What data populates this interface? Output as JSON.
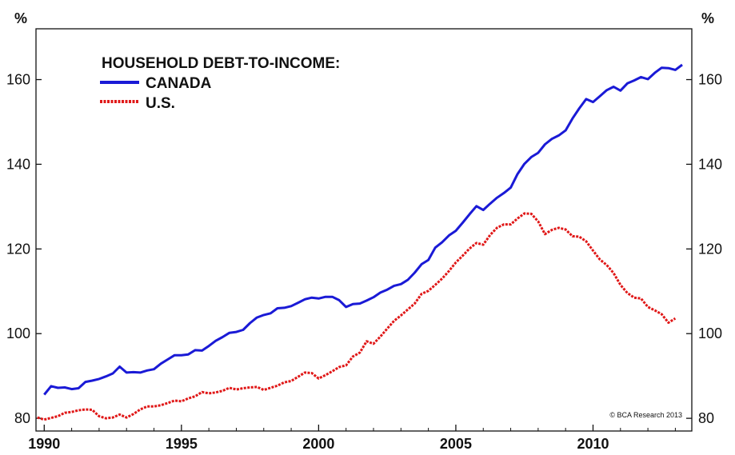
{
  "chart_data": {
    "type": "line",
    "title": "HOUSEHOLD DEBT-TO-INCOME:",
    "unit_left": "%",
    "unit_right": "%",
    "credit": "© BCA Research 2013",
    "xlim": [
      1989.7,
      2013.6
    ],
    "ylim": [
      77,
      172
    ],
    "x_ticks": [
      1990,
      1995,
      2000,
      2005,
      2010
    ],
    "y_ticks": [
      80,
      100,
      120,
      140,
      160
    ],
    "grid": false,
    "legend": "top-left",
    "colors": {
      "canada": "#1a1ad6",
      "us": "#e01818"
    },
    "series": [
      {
        "name": "CANADA",
        "style": "solid",
        "points": [
          [
            1990.0,
            85.6
          ],
          [
            1990.25,
            87.6
          ],
          [
            1990.5,
            87.2
          ],
          [
            1990.75,
            87.3
          ],
          [
            1991.0,
            86.9
          ],
          [
            1991.25,
            87.1
          ],
          [
            1991.5,
            88.6
          ],
          [
            1991.75,
            88.9
          ],
          [
            1992.0,
            89.3
          ],
          [
            1992.25,
            89.9
          ],
          [
            1992.5,
            90.6
          ],
          [
            1992.75,
            92.2
          ],
          [
            1993.0,
            90.8
          ],
          [
            1993.25,
            90.9
          ],
          [
            1993.5,
            90.8
          ],
          [
            1993.75,
            91.3
          ],
          [
            1994.0,
            91.6
          ],
          [
            1994.25,
            92.9
          ],
          [
            1994.5,
            93.9
          ],
          [
            1994.75,
            94.9
          ],
          [
            1995.0,
            94.9
          ],
          [
            1995.25,
            95.1
          ],
          [
            1995.5,
            96.1
          ],
          [
            1995.75,
            96.0
          ],
          [
            1996.0,
            97.1
          ],
          [
            1996.25,
            98.3
          ],
          [
            1996.5,
            99.2
          ],
          [
            1996.75,
            100.2
          ],
          [
            1997.0,
            100.4
          ],
          [
            1997.25,
            100.9
          ],
          [
            1997.5,
            102.5
          ],
          [
            1997.75,
            103.8
          ],
          [
            1998.0,
            104.4
          ],
          [
            1998.25,
            104.8
          ],
          [
            1998.5,
            106.0
          ],
          [
            1998.75,
            106.1
          ],
          [
            1999.0,
            106.5
          ],
          [
            1999.25,
            107.3
          ],
          [
            1999.5,
            108.1
          ],
          [
            1999.75,
            108.5
          ],
          [
            2000.0,
            108.3
          ],
          [
            2000.25,
            108.7
          ],
          [
            2000.5,
            108.7
          ],
          [
            2000.75,
            107.9
          ],
          [
            2001.0,
            106.3
          ],
          [
            2001.25,
            107.0
          ],
          [
            2001.5,
            107.1
          ],
          [
            2001.75,
            107.8
          ],
          [
            2002.0,
            108.6
          ],
          [
            2002.25,
            109.7
          ],
          [
            2002.5,
            110.4
          ],
          [
            2002.75,
            111.3
          ],
          [
            2003.0,
            111.7
          ],
          [
            2003.25,
            112.7
          ],
          [
            2003.5,
            114.4
          ],
          [
            2003.75,
            116.4
          ],
          [
            2004.0,
            117.4
          ],
          [
            2004.25,
            120.3
          ],
          [
            2004.5,
            121.6
          ],
          [
            2004.75,
            123.2
          ],
          [
            2005.0,
            124.3
          ],
          [
            2005.25,
            126.2
          ],
          [
            2005.5,
            128.2
          ],
          [
            2005.75,
            130.1
          ],
          [
            2006.0,
            129.2
          ],
          [
            2006.25,
            130.7
          ],
          [
            2006.5,
            132.1
          ],
          [
            2006.75,
            133.2
          ],
          [
            2007.0,
            134.5
          ],
          [
            2007.25,
            137.7
          ],
          [
            2007.5,
            140.1
          ],
          [
            2007.75,
            141.7
          ],
          [
            2008.0,
            142.7
          ],
          [
            2008.25,
            144.7
          ],
          [
            2008.5,
            146.0
          ],
          [
            2008.75,
            146.8
          ],
          [
            2009.0,
            148.0
          ],
          [
            2009.25,
            150.8
          ],
          [
            2009.5,
            153.2
          ],
          [
            2009.75,
            155.4
          ],
          [
            2010.0,
            154.7
          ],
          [
            2010.25,
            156.1
          ],
          [
            2010.5,
            157.5
          ],
          [
            2010.75,
            158.3
          ],
          [
            2011.0,
            157.4
          ],
          [
            2011.25,
            159.1
          ],
          [
            2011.5,
            159.8
          ],
          [
            2011.75,
            160.6
          ],
          [
            2012.0,
            160.1
          ],
          [
            2012.25,
            161.6
          ],
          [
            2012.5,
            162.8
          ],
          [
            2012.75,
            162.7
          ],
          [
            2013.0,
            162.3
          ],
          [
            2013.25,
            163.5
          ]
        ]
      },
      {
        "name": "U.S.",
        "style": "dashed",
        "points": [
          [
            1989.75,
            80.2
          ],
          [
            1990.0,
            79.7
          ],
          [
            1990.25,
            80.1
          ],
          [
            1990.5,
            80.5
          ],
          [
            1990.75,
            81.3
          ],
          [
            1991.0,
            81.5
          ],
          [
            1991.25,
            81.9
          ],
          [
            1991.5,
            82.1
          ],
          [
            1991.75,
            82.0
          ],
          [
            1992.0,
            80.5
          ],
          [
            1992.25,
            80.0
          ],
          [
            1992.5,
            80.2
          ],
          [
            1992.75,
            80.9
          ],
          [
            1993.0,
            80.2
          ],
          [
            1993.25,
            81.0
          ],
          [
            1993.5,
            82.1
          ],
          [
            1993.75,
            82.8
          ],
          [
            1994.0,
            82.8
          ],
          [
            1994.25,
            83.1
          ],
          [
            1994.5,
            83.6
          ],
          [
            1994.75,
            84.2
          ],
          [
            1995.0,
            84.0
          ],
          [
            1995.25,
            84.7
          ],
          [
            1995.5,
            85.2
          ],
          [
            1995.75,
            86.2
          ],
          [
            1996.0,
            85.9
          ],
          [
            1996.25,
            86.1
          ],
          [
            1996.5,
            86.5
          ],
          [
            1996.75,
            87.2
          ],
          [
            1997.0,
            86.8
          ],
          [
            1997.25,
            87.1
          ],
          [
            1997.5,
            87.3
          ],
          [
            1997.75,
            87.4
          ],
          [
            1998.0,
            86.7
          ],
          [
            1998.25,
            87.2
          ],
          [
            1998.5,
            87.7
          ],
          [
            1998.75,
            88.5
          ],
          [
            1999.0,
            88.8
          ],
          [
            1999.25,
            89.8
          ],
          [
            1999.5,
            90.8
          ],
          [
            1999.75,
            90.7
          ],
          [
            2000.0,
            89.4
          ],
          [
            2000.25,
            90.2
          ],
          [
            2000.5,
            91.1
          ],
          [
            2000.75,
            92.1
          ],
          [
            2001.0,
            92.5
          ],
          [
            2001.25,
            94.6
          ],
          [
            2001.5,
            95.5
          ],
          [
            2001.75,
            98.2
          ],
          [
            2002.0,
            97.6
          ],
          [
            2002.25,
            99.3
          ],
          [
            2002.5,
            101.2
          ],
          [
            2002.75,
            103.0
          ],
          [
            2003.0,
            104.3
          ],
          [
            2003.25,
            105.7
          ],
          [
            2003.5,
            107.1
          ],
          [
            2003.75,
            109.4
          ],
          [
            2004.0,
            110.1
          ],
          [
            2004.25,
            111.5
          ],
          [
            2004.5,
            113.0
          ],
          [
            2004.75,
            114.8
          ],
          [
            2005.0,
            116.8
          ],
          [
            2005.25,
            118.4
          ],
          [
            2005.5,
            120.1
          ],
          [
            2005.75,
            121.4
          ],
          [
            2006.0,
            121.0
          ],
          [
            2006.25,
            123.3
          ],
          [
            2006.5,
            125.0
          ],
          [
            2006.75,
            125.8
          ],
          [
            2007.0,
            125.8
          ],
          [
            2007.25,
            127.2
          ],
          [
            2007.5,
            128.4
          ],
          [
            2007.75,
            128.3
          ],
          [
            2008.0,
            126.5
          ],
          [
            2008.25,
            123.5
          ],
          [
            2008.5,
            124.5
          ],
          [
            2008.75,
            125.0
          ],
          [
            2009.0,
            124.6
          ],
          [
            2009.25,
            123.0
          ],
          [
            2009.5,
            122.9
          ],
          [
            2009.75,
            121.8
          ],
          [
            2010.0,
            119.6
          ],
          [
            2010.25,
            117.5
          ],
          [
            2010.5,
            116.2
          ],
          [
            2010.75,
            114.3
          ],
          [
            2011.0,
            111.5
          ],
          [
            2011.25,
            109.6
          ],
          [
            2011.5,
            108.5
          ],
          [
            2011.75,
            108.3
          ],
          [
            2012.0,
            106.3
          ],
          [
            2012.25,
            105.5
          ],
          [
            2012.5,
            104.6
          ],
          [
            2012.75,
            102.6
          ],
          [
            2013.0,
            103.6
          ]
        ]
      }
    ]
  }
}
